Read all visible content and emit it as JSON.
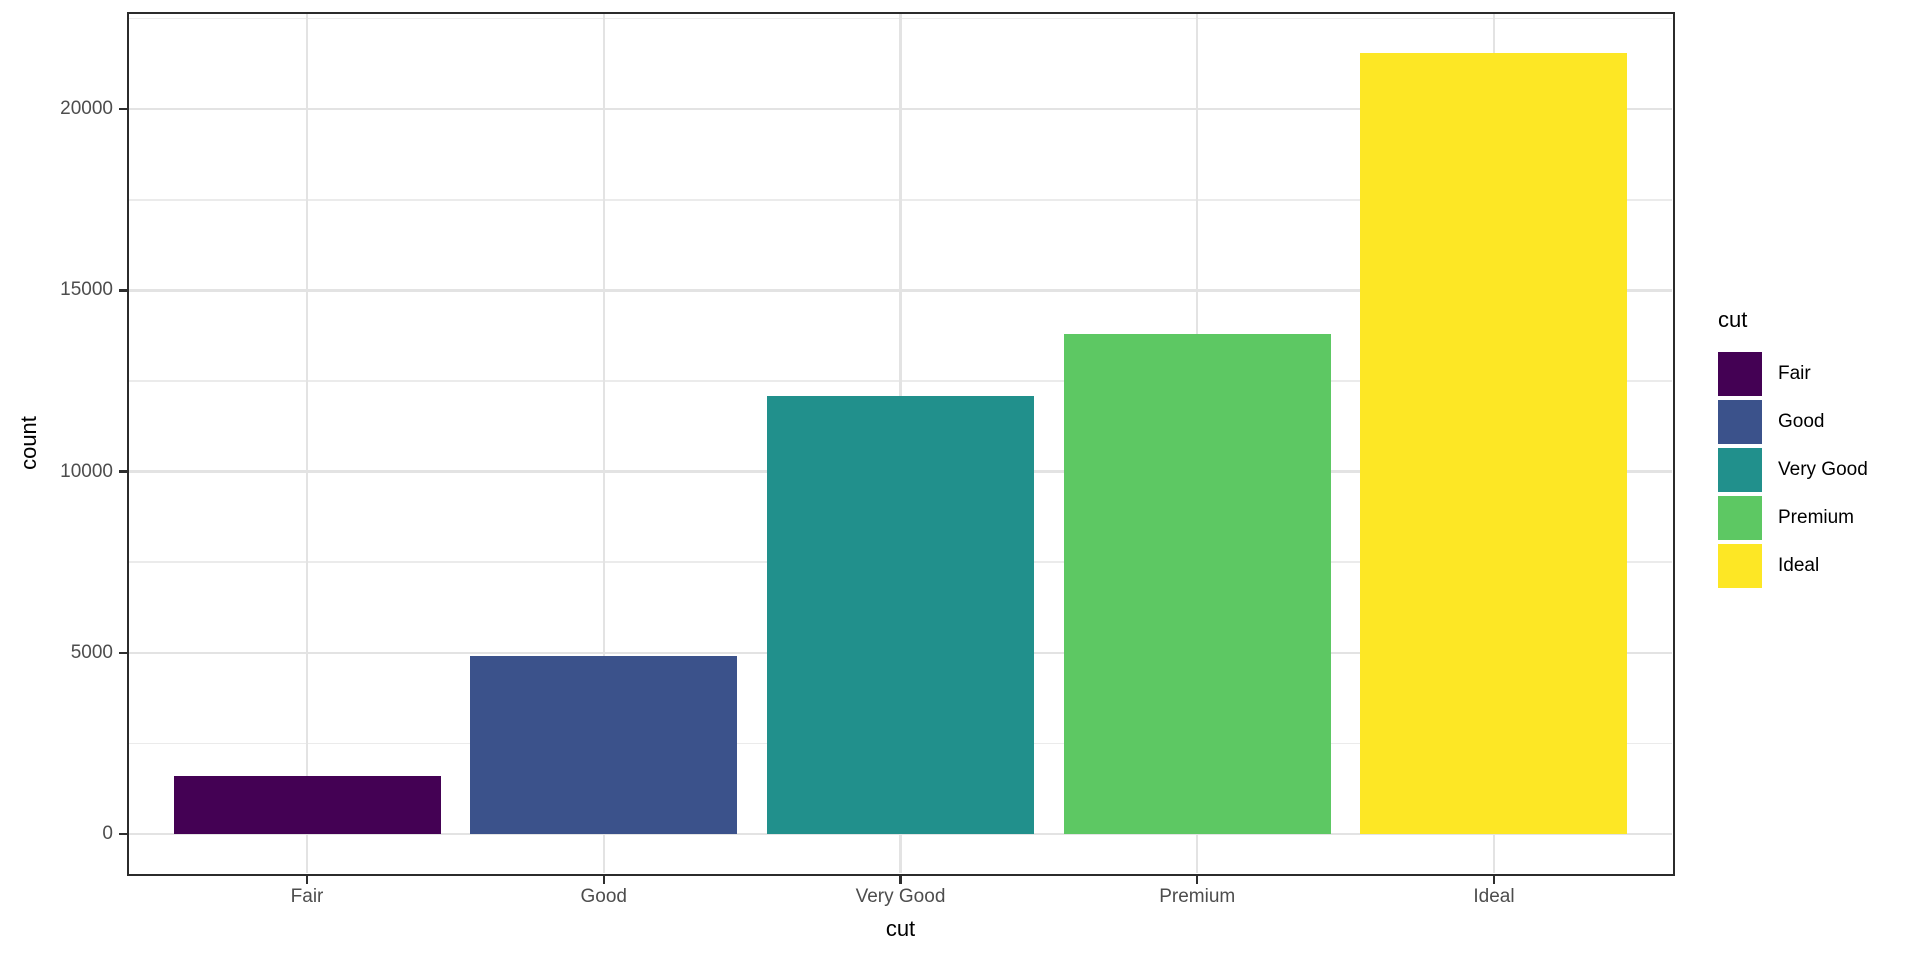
{
  "chart_data": {
    "type": "bar",
    "xlabel": "cut",
    "ylabel": "count",
    "categories": [
      "Fair",
      "Good",
      "Very Good",
      "Premium",
      "Ideal"
    ],
    "values": [
      1610,
      4906,
      12082,
      13791,
      21551
    ],
    "bar_colors": [
      "#440154",
      "#3B528B",
      "#21908C",
      "#5DC863",
      "#FDE725"
    ],
    "y_axis": {
      "ticks": [
        0,
        5000,
        10000,
        15000,
        20000
      ],
      "minor_gridlines": [
        2500,
        7500,
        12500,
        17500,
        22500
      ],
      "range_expanded": [
        -1077.55,
        22628.55
      ]
    },
    "x_axis": {
      "tick_labels": [
        "Fair",
        "Good",
        "Very Good",
        "Premium",
        "Ideal"
      ]
    },
    "legend": {
      "title": "cut",
      "position": "right",
      "entries": [
        {
          "label": "Fair",
          "color": "#440154"
        },
        {
          "label": "Good",
          "color": "#3B528B"
        },
        {
          "label": "Very Good",
          "color": "#21908C"
        },
        {
          "label": "Premium",
          "color": "#5DC863"
        },
        {
          "label": "Ideal",
          "color": "#FDE725"
        }
      ]
    },
    "grid": true,
    "theme": {
      "panel_border": "#2B2B2B",
      "grid_major": "#E3E3E3",
      "grid_minor": "#EBEBEB",
      "tick_color": "#2E2E2E",
      "axis_text_color": "#4D4D4D",
      "title_color": "#000000",
      "background": "#FFFFFF"
    }
  }
}
